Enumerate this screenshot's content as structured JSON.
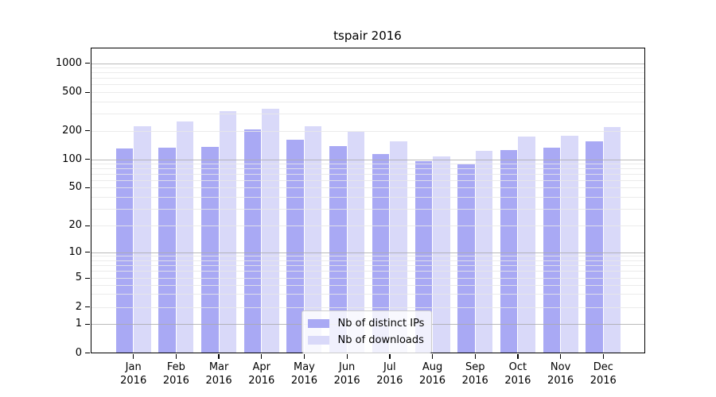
{
  "figure": {
    "title": "tspair 2016"
  },
  "legend": {
    "items": [
      {
        "label": "Nb of distinct IPs",
        "color": "#a9a9f4"
      },
      {
        "label": "Nb of downloads",
        "color": "#d9d9f9"
      }
    ]
  },
  "axis_colors": {
    "frame": "#000000",
    "major_grid": "#ababab",
    "minor_grid": "#e7e7e7"
  },
  "chart_data": {
    "type": "bar",
    "title": "tspair 2016",
    "categories": [
      "Jan 2016",
      "Feb 2016",
      "Mar 2016",
      "Apr 2016",
      "May 2016",
      "Jun 2016",
      "Jul 2016",
      "Aug 2016",
      "Sep 2016",
      "Oct 2016",
      "Nov 2016",
      "Dec 2016"
    ],
    "series": [
      {
        "name": "Nb of distinct IPs",
        "color": "#a9a9f4",
        "values": [
          130,
          132,
          136,
          205,
          160,
          138,
          113,
          95,
          88,
          124,
          133,
          155
        ]
      },
      {
        "name": "Nb of downloads",
        "color": "#d9d9f9",
        "values": [
          220,
          250,
          320,
          335,
          222,
          196,
          155,
          108,
          123,
          173,
          178,
          218
        ]
      }
    ],
    "xlabel": "",
    "ylabel": "",
    "yscale": "symlog",
    "yticks": [
      0,
      1,
      2,
      5,
      10,
      20,
      50,
      100,
      200,
      500,
      1000
    ],
    "ylim": [
      0,
      1400
    ],
    "grid": "horizontal, major and minor lines",
    "legend_position": "lower center inside plot"
  }
}
